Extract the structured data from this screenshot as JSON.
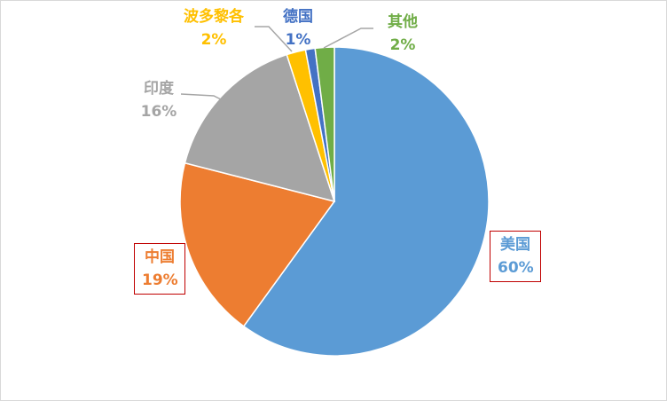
{
  "chart_data": {
    "type": "pie",
    "start_angle": "top, clockwise",
    "slices": [
      {
        "label": "美国",
        "value": 60,
        "value_label": "60%",
        "color": "#5B9BD5",
        "boxed": true
      },
      {
        "label": "中国",
        "value": 19,
        "value_label": "19%",
        "color": "#ED7D31",
        "boxed": true
      },
      {
        "label": "印度",
        "value": 16,
        "value_label": "16%",
        "color": "#A5A5A5",
        "boxed": false
      },
      {
        "label": "波多黎各",
        "value": 2,
        "value_label": "2%",
        "color": "#FFC000",
        "boxed": false
      },
      {
        "label": "德国",
        "value": 1,
        "value_label": "1%",
        "color": "#4472C4",
        "boxed": false
      },
      {
        "label": "其他",
        "value": 2,
        "value_label": "2%",
        "color": "#70AD47",
        "boxed": false
      }
    ],
    "label_box_color": "#C00000",
    "legend": "none"
  }
}
